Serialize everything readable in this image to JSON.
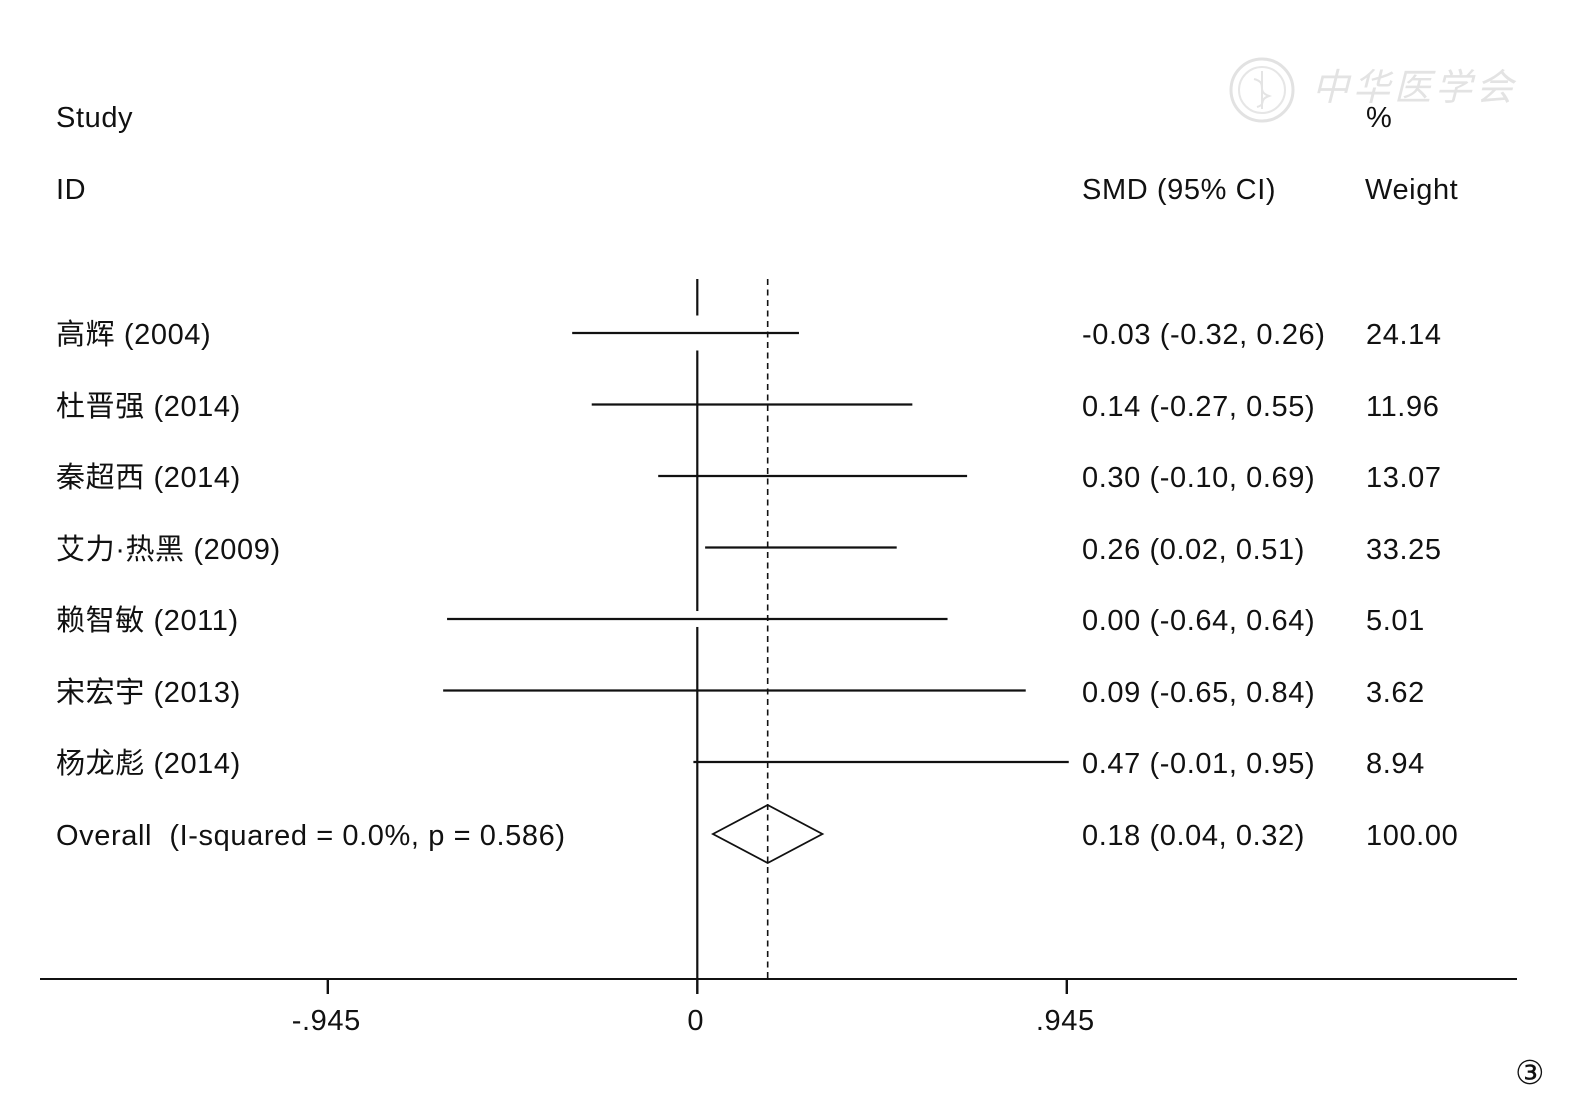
{
  "header": {
    "study": "Study",
    "id": "ID",
    "estimate": "SMD (95% CI)",
    "percent": "%",
    "weight": "Weight"
  },
  "watermark": "中华医学会",
  "panel_marker": "③",
  "chart_data": {
    "type": "scatter",
    "studies": [
      {
        "label": "高辉 (2004)",
        "smd": -0.03,
        "ci_low": -0.32,
        "ci_high": 0.26,
        "estimate_text": "-0.03 (-0.32, 0.26)",
        "weight": "24.14"
      },
      {
        "label": "杜晋强 (2014)",
        "smd": 0.14,
        "ci_low": -0.27,
        "ci_high": 0.55,
        "estimate_text": "0.14 (-0.27, 0.55)",
        "weight": "11.96"
      },
      {
        "label": "秦超西 (2014)",
        "smd": 0.3,
        "ci_low": -0.1,
        "ci_high": 0.69,
        "estimate_text": "0.30 (-0.10, 0.69)",
        "weight": "13.07"
      },
      {
        "label": "艾力·热黑 (2009)",
        "smd": 0.26,
        "ci_low": 0.02,
        "ci_high": 0.51,
        "estimate_text": "0.26 (0.02, 0.51)",
        "weight": "33.25"
      },
      {
        "label": "赖智敏 (2011)",
        "smd": 0.0,
        "ci_low": -0.64,
        "ci_high": 0.64,
        "estimate_text": "0.00 (-0.64, 0.64)",
        "weight": "5.01"
      },
      {
        "label": "宋宏宇 (2013)",
        "smd": 0.09,
        "ci_low": -0.65,
        "ci_high": 0.84,
        "estimate_text": "0.09 (-0.65, 0.84)",
        "weight": "3.62"
      },
      {
        "label": "杨龙彪 (2014)",
        "smd": 0.47,
        "ci_low": -0.01,
        "ci_high": 0.95,
        "estimate_text": "0.47 (-0.01, 0.95)",
        "weight": "8.94"
      }
    ],
    "overall": {
      "label": "Overall  (I-squared = 0.0%, p = 0.586)",
      "smd": 0.18,
      "ci_low": 0.04,
      "ci_high": 0.32,
      "estimate_text": "0.18 (0.04, 0.32)",
      "weight": "100.00"
    },
    "x_axis": {
      "ticks": [
        -0.945,
        0,
        0.945
      ],
      "tick_labels": [
        "-.945",
        "0",
        ".945"
      ]
    },
    "reference_lines": [
      {
        "value": 0,
        "style": "solid"
      },
      {
        "value": 0.18,
        "style": "dashed"
      }
    ],
    "grid": false
  }
}
